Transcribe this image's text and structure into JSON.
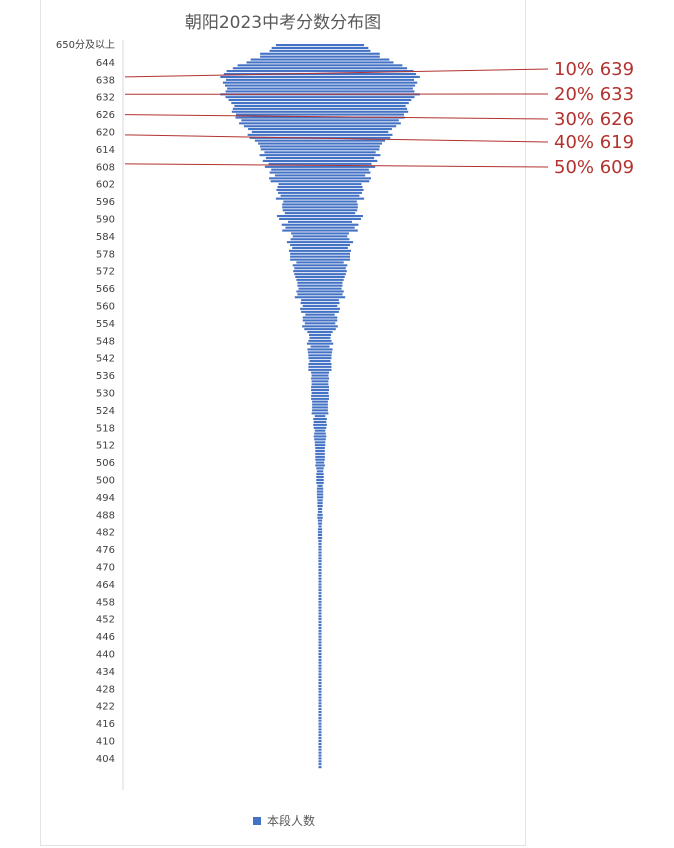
{
  "chart_data": {
    "type": "bar",
    "orientation": "horizontal",
    "title": "朝阳2023中考分数分布图",
    "top_bucket_label": "650分及以上",
    "y_tick_labels": [
      "644",
      "638",
      "632",
      "626",
      "620",
      "614",
      "608",
      "602",
      "596",
      "590",
      "584",
      "578",
      "572",
      "566",
      "560",
      "554",
      "548",
      "542",
      "536",
      "530",
      "524",
      "518",
      "512",
      "506",
      "500",
      "494",
      "488",
      "482",
      "476",
      "470",
      "464",
      "458",
      "452",
      "446",
      "440",
      "434",
      "428",
      "422",
      "416",
      "410",
      "404"
    ],
    "y_range": [
      401,
      650
    ],
    "legend_placement": "bottom",
    "series": [
      {
        "name": "本段人数",
        "color": "#4472c4",
        "categories": [
          "650",
          "649",
          "648",
          "647",
          "646",
          "645",
          "644",
          "643",
          "642",
          "641",
          "640",
          "639",
          "638",
          "637",
          "636",
          "635",
          "634",
          "633",
          "632",
          "631",
          "630",
          "629",
          "628",
          "627",
          "626",
          "625",
          "624",
          "623",
          "622",
          "621",
          "620",
          "619",
          "618",
          "617",
          "616",
          "615",
          "614",
          "613",
          "612",
          "611",
          "610",
          "609",
          "608",
          "607",
          "606",
          "605",
          "604",
          "603",
          "602",
          "601",
          "600",
          "599",
          "598",
          "597",
          "596",
          "595",
          "594",
          "593",
          "592",
          "591",
          "590",
          "589",
          "588",
          "587",
          "586",
          "585",
          "584",
          "583",
          "582",
          "581",
          "580",
          "579",
          "578",
          "577",
          "576",
          "575",
          "574",
          "573",
          "572",
          "571",
          "570",
          "569",
          "568",
          "567",
          "566",
          "565",
          "564",
          "563",
          "562",
          "561",
          "560",
          "559",
          "558",
          "557",
          "556",
          "555",
          "554",
          "553",
          "552",
          "551",
          "550",
          "549",
          "548",
          "547",
          "546",
          "545",
          "544",
          "543",
          "542",
          "541",
          "540",
          "539",
          "538",
          "537",
          "536",
          "535",
          "534",
          "533",
          "532",
          "531",
          "530",
          "529",
          "528",
          "527",
          "526",
          "525",
          "524",
          "523",
          "522",
          "521",
          "520",
          "519",
          "518",
          "517",
          "516",
          "515",
          "514",
          "513",
          "512",
          "511",
          "510",
          "509",
          "508",
          "507",
          "506",
          "505",
          "504",
          "503",
          "502",
          "501",
          "500",
          "499",
          "498",
          "497",
          "496",
          "495",
          "494",
          "493",
          "492",
          "491",
          "490",
          "489",
          "488",
          "487",
          "486",
          "485",
          "484",
          "483",
          "482",
          "481",
          "480",
          "479",
          "478",
          "477",
          "476",
          "475",
          "474",
          "473",
          "472",
          "471",
          "470",
          "469",
          "468",
          "467",
          "466",
          "465",
          "464",
          "463",
          "462",
          "461",
          "460",
          "459",
          "458",
          "457",
          "456",
          "455",
          "454",
          "453",
          "452",
          "451",
          "450",
          "449",
          "448",
          "447",
          "446",
          "445",
          "444",
          "443",
          "442",
          "441",
          "440",
          "439",
          "438",
          "437",
          "436",
          "435",
          "434",
          "433",
          "432",
          "431",
          "430",
          "429",
          "428",
          "427",
          "426",
          "425",
          "424",
          "423",
          "422",
          "421",
          "420",
          "419",
          "418",
          "417",
          "416",
          "415",
          "414",
          "413",
          "412",
          "411",
          "410",
          "409",
          "408",
          "407",
          "406",
          "405",
          "404",
          "403",
          "402",
          "401"
        ],
        "values": [
          84,
          92,
          96,
          114,
          114,
          132,
          140,
          157,
          166,
          178,
          183,
          190,
          179,
          185,
          181,
          177,
          180,
          190,
          180,
          174,
          169,
          163,
          166,
          168,
          160,
          161,
          150,
          154,
          145,
          137,
          130,
          138,
          134,
          124,
          118,
          114,
          113,
          106,
          115,
          103,
          109,
          98,
          105,
          93,
          96,
          86,
          97,
          94,
          79,
          81,
          83,
          80,
          75,
          84,
          70,
          72,
          72,
          71,
          67,
          82,
          78,
          61,
          73,
          66,
          72,
          55,
          52,
          56,
          63,
          57,
          53,
          59,
          57,
          57,
          57,
          45,
          52,
          49,
          51,
          49,
          47,
          45,
          43,
          43,
          41,
          45,
          43,
          48,
          36,
          37,
          33,
          38,
          36,
          28,
          33,
          33,
          29,
          34,
          30,
          24,
          21,
          20,
          22,
          25,
          18,
          24,
          23,
          22,
          22,
          20,
          22,
          22,
          22,
          17,
          16,
          17,
          16,
          16,
          17,
          17,
          16,
          17,
          17,
          15,
          15,
          15,
          15,
          16,
          10,
          13,
          12,
          13,
          12,
          10,
          11,
          12,
          11,
          10,
          10,
          9,
          9,
          9,
          9,
          9,
          8,
          9,
          7,
          6,
          7,
          7,
          7,
          7,
          5,
          6,
          6,
          6,
          6,
          5,
          5,
          5,
          4,
          4,
          5,
          5,
          4,
          4,
          3,
          4,
          4,
          4,
          4,
          3,
          3,
          3,
          3,
          3,
          3,
          3,
          3,
          2,
          2,
          2,
          2,
          2,
          2,
          2,
          2,
          2,
          2,
          2,
          1,
          1,
          1,
          1,
          1,
          1,
          1,
          1,
          1,
          1,
          1,
          1,
          1,
          1,
          1,
          1,
          1,
          1,
          1,
          1,
          1,
          1,
          1,
          1,
          1,
          1,
          1,
          1,
          1,
          1,
          1,
          1,
          1,
          1,
          1,
          1,
          1,
          1,
          1,
          1,
          1,
          1,
          1,
          1,
          1,
          1,
          1,
          1,
          1,
          1,
          1,
          1,
          1,
          1,
          1,
          1,
          1,
          1,
          1,
          1
        ]
      }
    ],
    "annotations": [
      {
        "label": "10% 639",
        "score": 639
      },
      {
        "label": "20% 633",
        "score": 633
      },
      {
        "label": "30% 626",
        "score": 626
      },
      {
        "label": "40% 619",
        "score": 619
      },
      {
        "label": "50% 609",
        "score": 609
      }
    ],
    "annotation_color": "#b3322f"
  }
}
